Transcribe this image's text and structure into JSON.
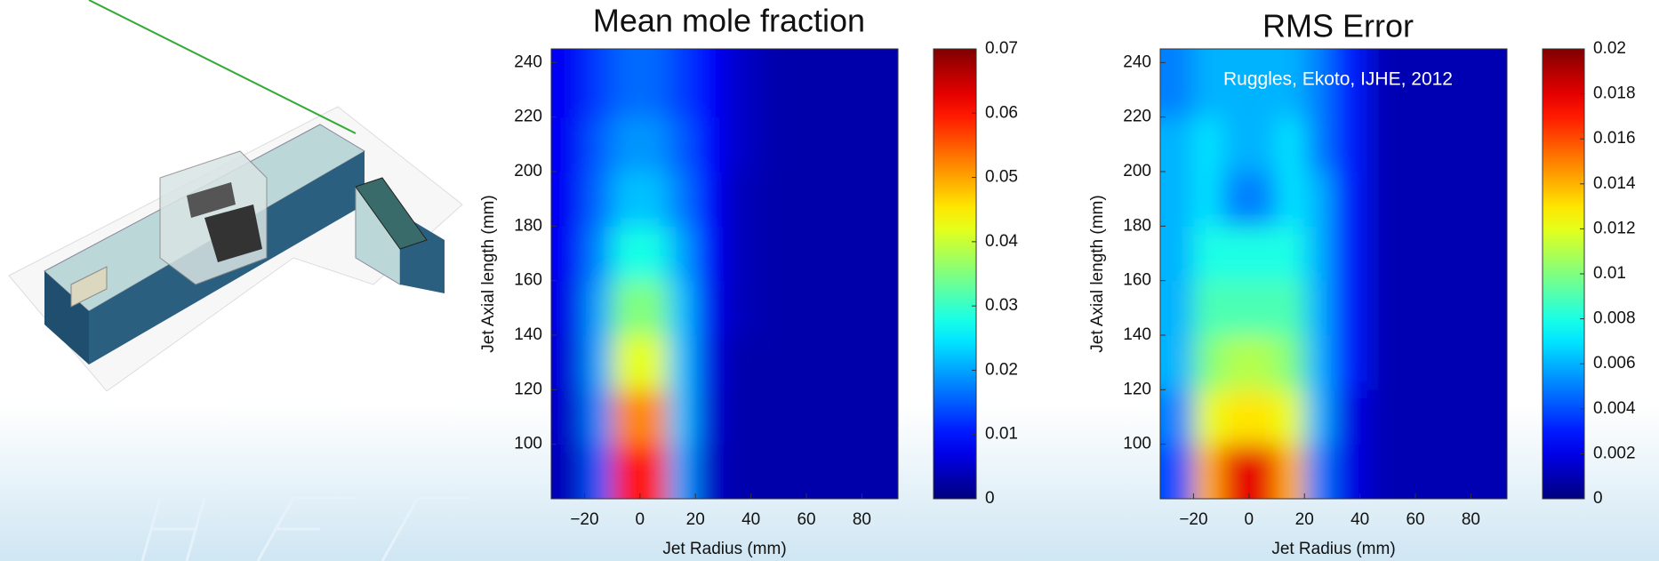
{
  "chart_data": [
    {
      "type": "heatmap",
      "title": "Mean mole fraction",
      "x_label": "Jet Radius (mm)",
      "y_label": "Jet Axial length (mm)",
      "colormap": "jet",
      "x": [
        -25,
        -15,
        -5,
        5,
        15,
        25,
        35,
        50,
        70,
        90
      ],
      "y": [
        90,
        110,
        130,
        150,
        170,
        190,
        210,
        230
      ],
      "z": [
        [
          0.004,
          0.015,
          0.06,
          0.06,
          0.02,
          0.005,
          0.003,
          0.003,
          0.003,
          0.003
        ],
        [
          0.005,
          0.018,
          0.052,
          0.052,
          0.022,
          0.006,
          0.003,
          0.003,
          0.003,
          0.003
        ],
        [
          0.006,
          0.02,
          0.042,
          0.042,
          0.022,
          0.007,
          0.003,
          0.003,
          0.003,
          0.003
        ],
        [
          0.007,
          0.02,
          0.035,
          0.035,
          0.022,
          0.008,
          0.004,
          0.003,
          0.003,
          0.003
        ],
        [
          0.008,
          0.018,
          0.028,
          0.028,
          0.02,
          0.009,
          0.004,
          0.003,
          0.003,
          0.003
        ],
        [
          0.008,
          0.016,
          0.022,
          0.022,
          0.017,
          0.009,
          0.004,
          0.003,
          0.003,
          0.003
        ],
        [
          0.008,
          0.015,
          0.019,
          0.019,
          0.015,
          0.009,
          0.005,
          0.003,
          0.003,
          0.003
        ],
        [
          0.008,
          0.013,
          0.016,
          0.016,
          0.013,
          0.009,
          0.005,
          0.003,
          0.003,
          0.003
        ]
      ],
      "xlim": [
        -32,
        93
      ],
      "ylim": [
        80,
        245
      ],
      "xticks": [
        {
          "value": -20,
          "label": "−20"
        },
        0,
        20,
        40,
        60,
        80
      ],
      "yticks": [
        100,
        120,
        140,
        160,
        180,
        200,
        220,
        240
      ],
      "clim": [
        0,
        0.07
      ],
      "cticks": [
        0,
        0.01,
        0.02,
        0.03,
        0.04,
        0.05,
        0.06,
        0.07
      ]
    },
    {
      "type": "heatmap",
      "title": "RMS Error",
      "x_label": "Jet Radius (mm)",
      "y_label": "Jet Axial length (mm)",
      "annotation": "Ruggles, Ekoto, IJHE, 2012",
      "colormap": "jet",
      "x": [
        -25,
        -15,
        -5,
        5,
        15,
        25,
        35,
        50,
        70,
        90
      ],
      "y": [
        90,
        110,
        130,
        150,
        170,
        190,
        210,
        230
      ],
      "z": [
        [
          0.004,
          0.014,
          0.018,
          0.018,
          0.014,
          0.005,
          0.002,
          0.001,
          0.001,
          0.001
        ],
        [
          0.005,
          0.012,
          0.013,
          0.013,
          0.012,
          0.006,
          0.002,
          0.001,
          0.001,
          0.001
        ],
        [
          0.006,
          0.01,
          0.011,
          0.011,
          0.01,
          0.006,
          0.003,
          0.001,
          0.001,
          0.001
        ],
        [
          0.006,
          0.009,
          0.009,
          0.009,
          0.009,
          0.006,
          0.003,
          0.001,
          0.001,
          0.001
        ],
        [
          0.006,
          0.008,
          0.008,
          0.008,
          0.008,
          0.006,
          0.003,
          0.001,
          0.001,
          0.001
        ],
        [
          0.006,
          0.007,
          0.005,
          0.005,
          0.007,
          0.006,
          0.003,
          0.001,
          0.001,
          0.001
        ],
        [
          0.006,
          0.007,
          0.006,
          0.006,
          0.007,
          0.005,
          0.003,
          0.001,
          0.001,
          0.001
        ],
        [
          0.005,
          0.006,
          0.006,
          0.006,
          0.006,
          0.005,
          0.003,
          0.001,
          0.001,
          0.001
        ]
      ],
      "xlim": [
        -32,
        93
      ],
      "ylim": [
        80,
        245
      ],
      "xticks": [
        {
          "value": -20,
          "label": "−20"
        },
        0,
        20,
        40,
        60,
        80
      ],
      "yticks": [
        100,
        120,
        140,
        160,
        180,
        200,
        220,
        240
      ],
      "clim": [
        0,
        0.02
      ],
      "cticks": [
        0,
        0.002,
        0.004,
        0.006,
        0.008,
        0.01,
        0.012,
        0.014,
        0.016,
        0.018,
        0.02
      ]
    }
  ]
}
